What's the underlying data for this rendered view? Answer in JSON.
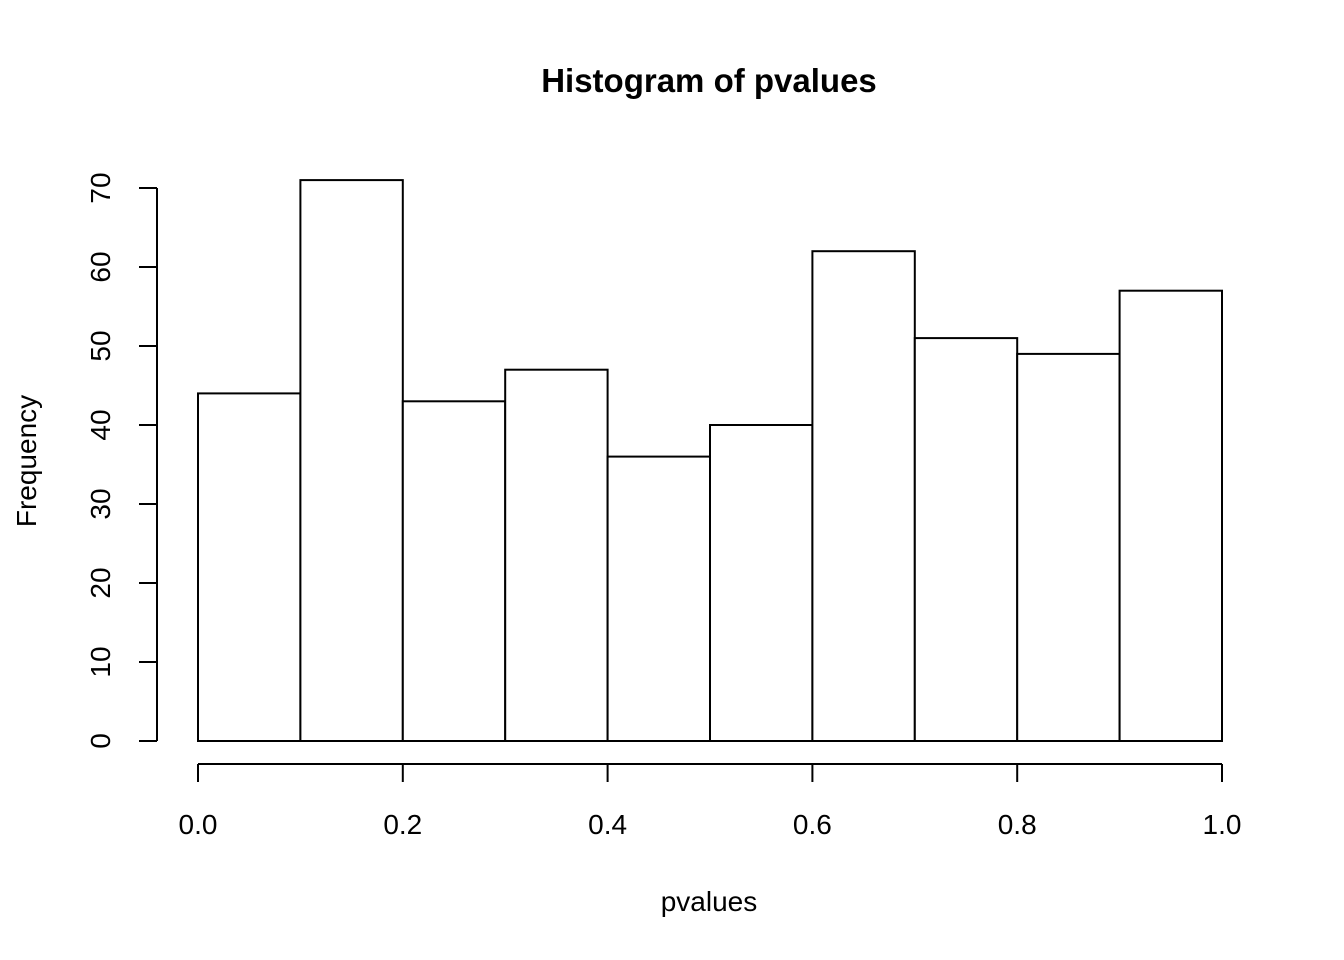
{
  "chart_data": {
    "type": "bar",
    "title": "Histogram of pvalues",
    "xlabel": "pvalues",
    "ylabel": "Frequency",
    "bins": [
      {
        "start": 0.0,
        "end": 0.1,
        "count": 44
      },
      {
        "start": 0.1,
        "end": 0.2,
        "count": 71
      },
      {
        "start": 0.2,
        "end": 0.3,
        "count": 43
      },
      {
        "start": 0.3,
        "end": 0.4,
        "count": 47
      },
      {
        "start": 0.4,
        "end": 0.5,
        "count": 36
      },
      {
        "start": 0.5,
        "end": 0.6,
        "count": 40
      },
      {
        "start": 0.6,
        "end": 0.7,
        "count": 62
      },
      {
        "start": 0.7,
        "end": 0.8,
        "count": 51
      },
      {
        "start": 0.8,
        "end": 0.9,
        "count": 49
      },
      {
        "start": 0.9,
        "end": 1.0,
        "count": 57
      }
    ],
    "xlim": [
      0.0,
      1.0
    ],
    "ylim": [
      0,
      70
    ],
    "xticks": [
      "0.0",
      "0.2",
      "0.4",
      "0.6",
      "0.8",
      "1.0"
    ],
    "yticks": [
      "0",
      "10",
      "20",
      "30",
      "40",
      "50",
      "60",
      "70"
    ],
    "grid": false,
    "colors": {
      "bar_fill": "#ffffff",
      "bar_stroke": "#000000",
      "background": "#ffffff"
    }
  }
}
